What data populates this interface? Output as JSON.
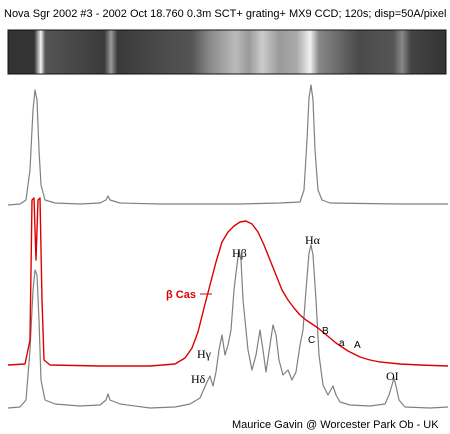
{
  "chart_data": {
    "type": "line",
    "title": "Nova Sgr 2002 #3 - 2002 Oct 18.760   0.3m SCT+ grating+ MX9 CCD; 120s; disp=50A/pixel",
    "credit": "Maurice Gavin @ Worcester Park Ob - UK",
    "x_range": [
      0,
      450
    ],
    "series": [
      {
        "name": "",
        "color": "#808080",
        "points": [
          [
            8,
            205
          ],
          [
            20,
            204
          ],
          [
            26,
            200
          ],
          [
            30,
            170
          ],
          [
            33,
            110
          ],
          [
            35,
            90
          ],
          [
            37,
            100
          ],
          [
            39,
            150
          ],
          [
            41,
            185
          ],
          [
            45,
            200
          ],
          [
            55,
            203
          ],
          [
            80,
            204
          ],
          [
            100,
            203
          ],
          [
            106,
            200
          ],
          [
            108,
            196
          ],
          [
            110,
            200
          ],
          [
            120,
            203
          ],
          [
            160,
            204
          ],
          [
            200,
            204
          ],
          [
            240,
            204
          ],
          [
            280,
            203
          ],
          [
            300,
            202
          ],
          [
            304,
            190
          ],
          [
            307,
            140
          ],
          [
            309,
            98
          ],
          [
            311,
            85
          ],
          [
            313,
            100
          ],
          [
            315,
            150
          ],
          [
            318,
            190
          ],
          [
            322,
            200
          ],
          [
            330,
            203
          ],
          [
            400,
            204
          ],
          [
            448,
            204
          ]
        ]
      },
      {
        "name": "",
        "color": "#808080",
        "points": [
          [
            8,
            408
          ],
          [
            20,
            407
          ],
          [
            26,
            400
          ],
          [
            30,
            350
          ],
          [
            33,
            290
          ],
          [
            35,
            270
          ],
          [
            37,
            275
          ],
          [
            39,
            320
          ],
          [
            41,
            380
          ],
          [
            45,
            400
          ],
          [
            55,
            404
          ],
          [
            80,
            406
          ],
          [
            100,
            405
          ],
          [
            106,
            400
          ],
          [
            108,
            394
          ],
          [
            110,
            400
          ],
          [
            120,
            404
          ],
          [
            150,
            408
          ],
          [
            175,
            407
          ],
          [
            190,
            404
          ],
          [
            200,
            398
          ],
          [
            207,
            382
          ],
          [
            210,
            376
          ],
          [
            213,
            386
          ],
          [
            216,
            372
          ],
          [
            219,
            350
          ],
          [
            222,
            335
          ],
          [
            225,
            355
          ],
          [
            228,
            345
          ],
          [
            231,
            330
          ],
          [
            234,
            290
          ],
          [
            237,
            265
          ],
          [
            239,
            250
          ],
          [
            241,
            260
          ],
          [
            243,
            300
          ],
          [
            245,
            320
          ],
          [
            248,
            350
          ],
          [
            252,
            370
          ],
          [
            256,
            355
          ],
          [
            260,
            330
          ],
          [
            263,
            350
          ],
          [
            266,
            372
          ],
          [
            270,
            345
          ],
          [
            273,
            325
          ],
          [
            276,
            335
          ],
          [
            279,
            360
          ],
          [
            283,
            375
          ],
          [
            288,
            370
          ],
          [
            292,
            380
          ],
          [
            296,
            372
          ],
          [
            300,
            345
          ],
          [
            303,
            330
          ],
          [
            306,
            290
          ],
          [
            309,
            253
          ],
          [
            311,
            245
          ],
          [
            313,
            255
          ],
          [
            316,
            300
          ],
          [
            319,
            355
          ],
          [
            323,
            385
          ],
          [
            328,
            395
          ],
          [
            333,
            386
          ],
          [
            336,
            395
          ],
          [
            340,
            402
          ],
          [
            350,
            405
          ],
          [
            370,
            406
          ],
          [
            385,
            404
          ],
          [
            389,
            395
          ],
          [
            392,
            385
          ],
          [
            394,
            378
          ],
          [
            396,
            386
          ],
          [
            399,
            400
          ],
          [
            405,
            407
          ],
          [
            430,
            408
          ],
          [
            448,
            407
          ]
        ]
      },
      {
        "name": "β Cas",
        "color": "#dd0000",
        "points": [
          [
            8,
            365
          ],
          [
            25,
            364
          ],
          [
            30,
            340
          ],
          [
            32,
            200
          ],
          [
            34,
            198
          ],
          [
            36,
            260
          ],
          [
            38,
            200
          ],
          [
            40,
            198
          ],
          [
            42,
            300
          ],
          [
            44,
            360
          ],
          [
            50,
            365
          ],
          [
            100,
            366
          ],
          [
            150,
            366
          ],
          [
            175,
            364
          ],
          [
            185,
            358
          ],
          [
            192,
            348
          ],
          [
            198,
            332
          ],
          [
            204,
            308
          ],
          [
            210,
            285
          ],
          [
            216,
            262
          ],
          [
            222,
            242
          ],
          [
            228,
            232
          ],
          [
            234,
            226
          ],
          [
            240,
            222
          ],
          [
            246,
            221
          ],
          [
            252,
            224
          ],
          [
            258,
            232
          ],
          [
            264,
            245
          ],
          [
            270,
            260
          ],
          [
            276,
            275
          ],
          [
            282,
            290
          ],
          [
            288,
            300
          ],
          [
            294,
            308
          ],
          [
            300,
            315
          ],
          [
            306,
            320
          ],
          [
            312,
            324
          ],
          [
            318,
            328
          ],
          [
            324,
            333
          ],
          [
            330,
            338
          ],
          [
            336,
            343
          ],
          [
            342,
            347
          ],
          [
            348,
            351
          ],
          [
            354,
            354
          ],
          [
            360,
            357
          ],
          [
            370,
            360
          ],
          [
            380,
            362
          ],
          [
            400,
            364
          ],
          [
            420,
            365
          ],
          [
            448,
            366
          ]
        ]
      }
    ],
    "line_labels": [
      "Hβ",
      "Hα",
      "Hγ",
      "Hδ",
      "B",
      "C",
      "a",
      "A",
      "OI"
    ]
  },
  "colors": {
    "background": "#ffffff",
    "strip": "#2a2a2a"
  }
}
